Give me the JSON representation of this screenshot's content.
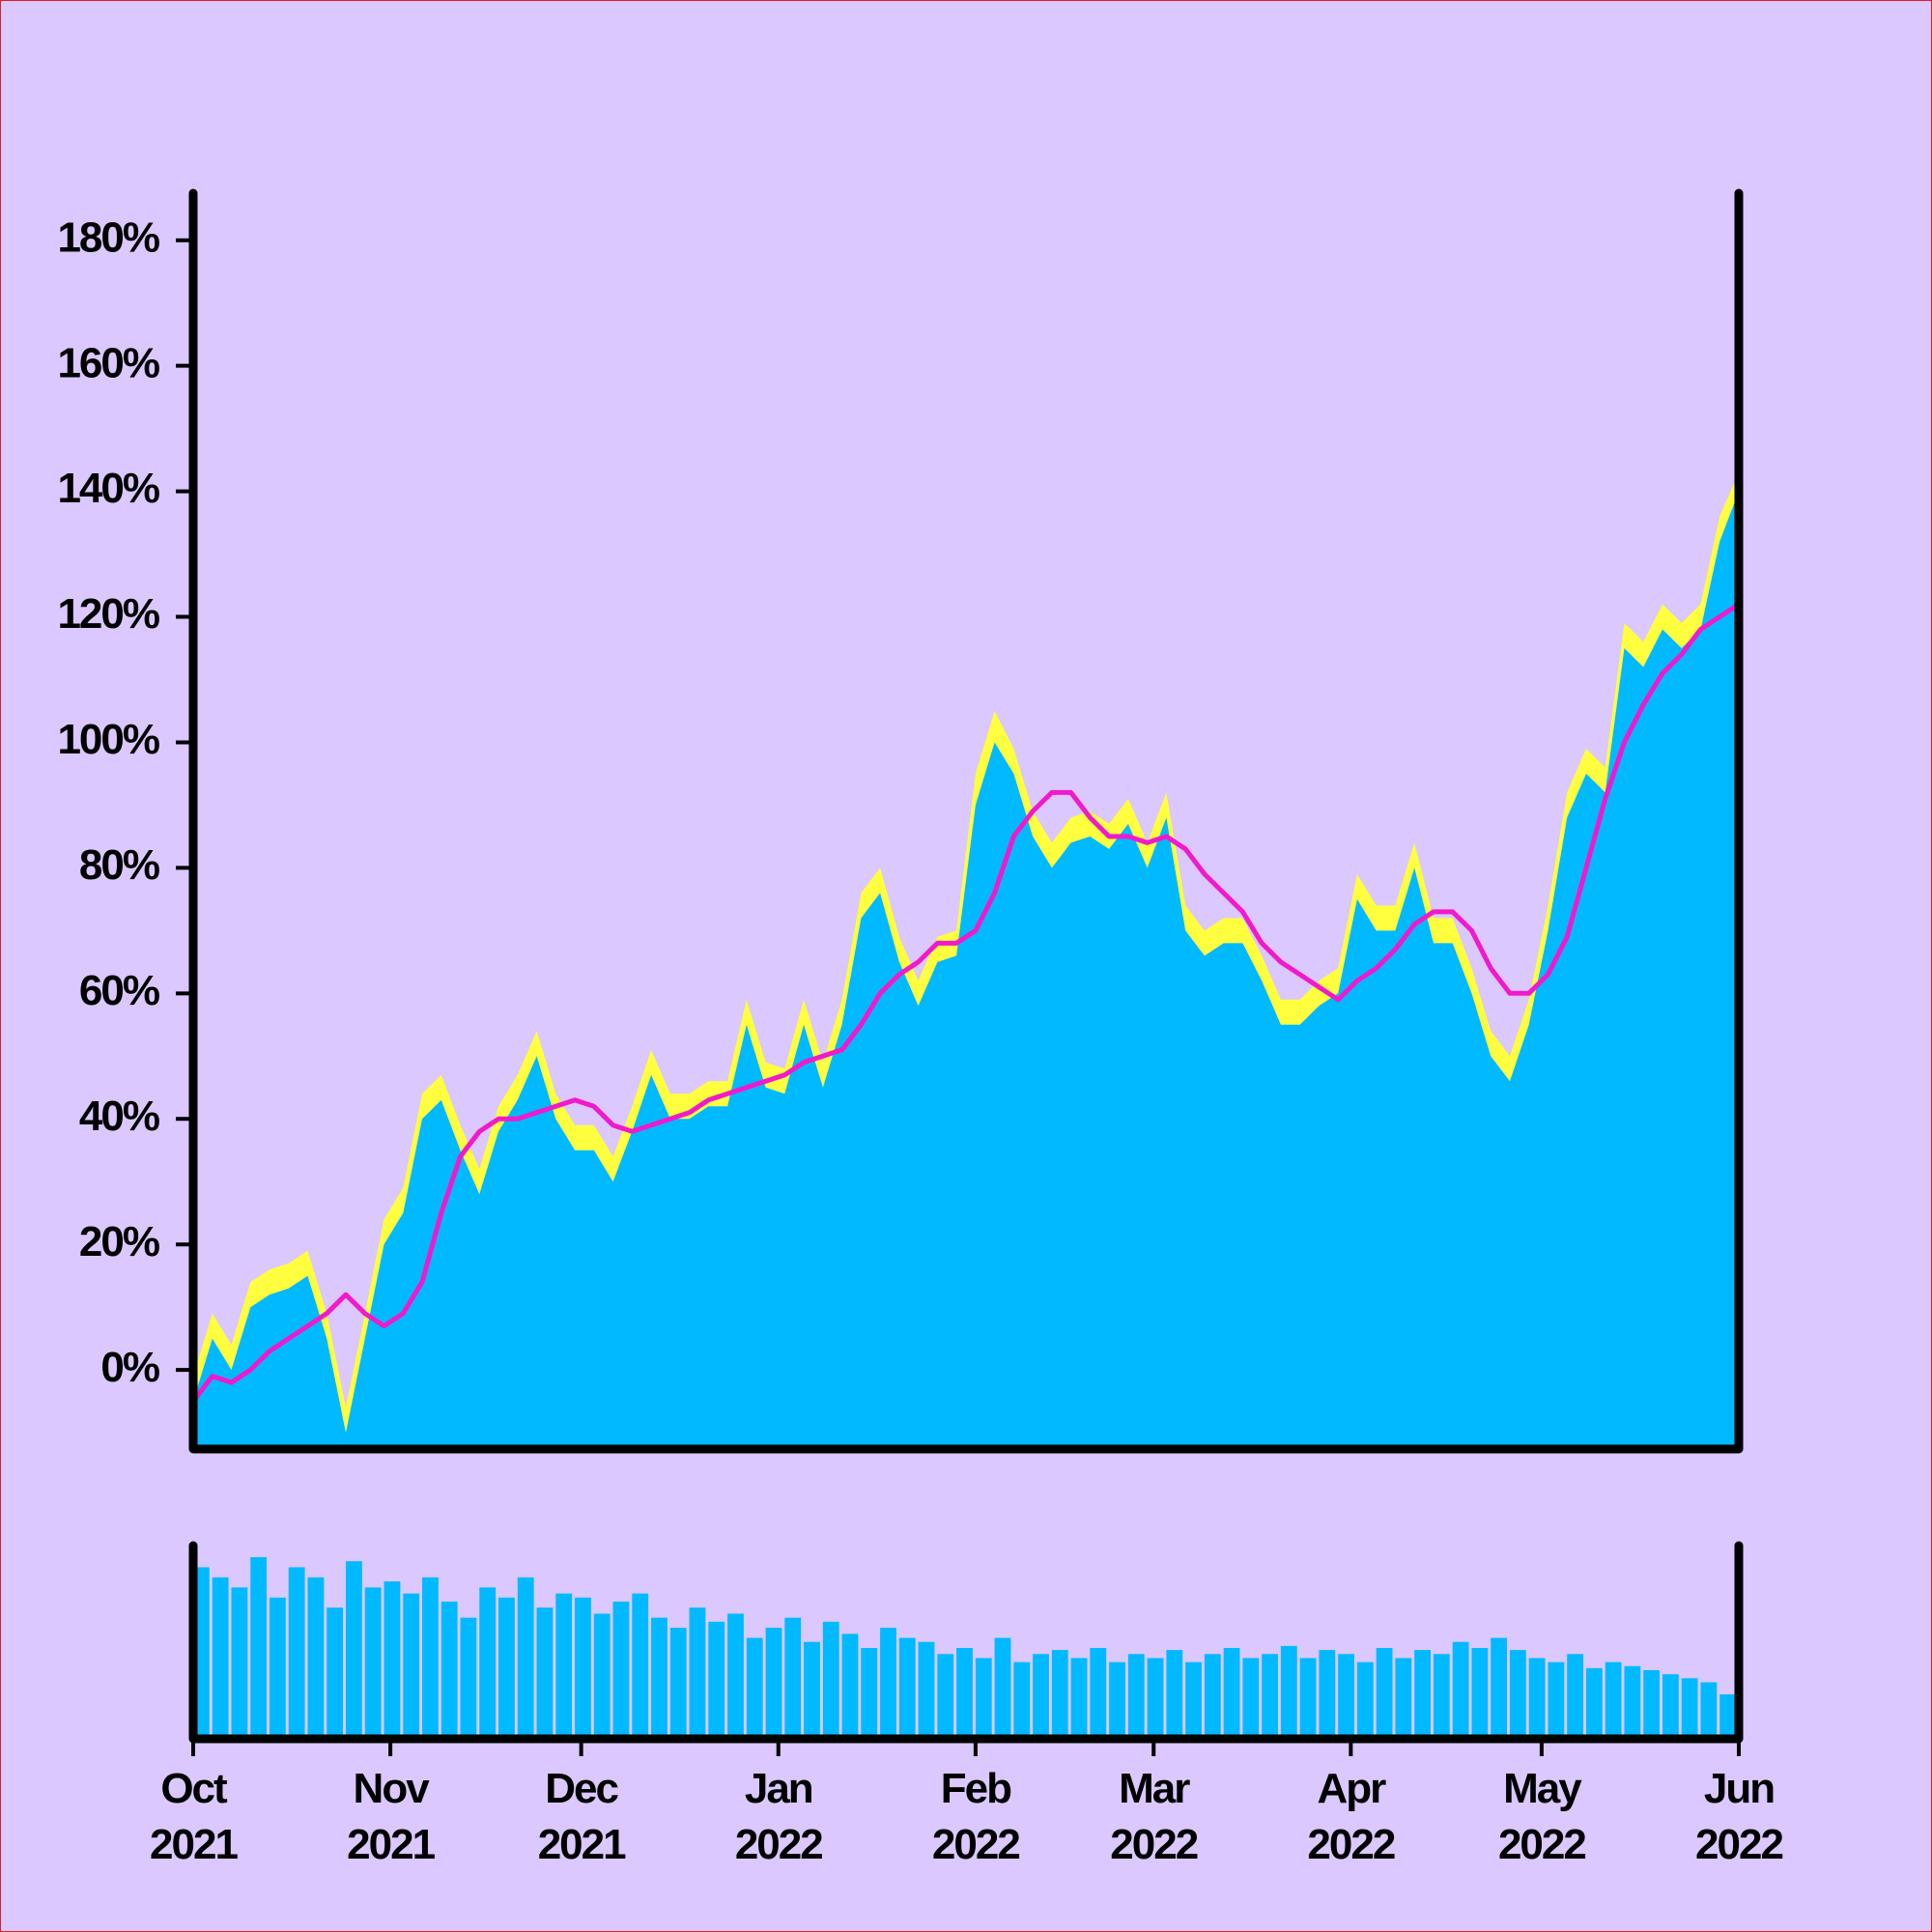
{
  "chart_data": [
    {
      "type": "area",
      "x": [
        0,
        3,
        6,
        9,
        12,
        15,
        18,
        21,
        24,
        27,
        30,
        33,
        36,
        39,
        42,
        45,
        48,
        51,
        54,
        57,
        60,
        63,
        66,
        69,
        72,
        75,
        78,
        81,
        84,
        87,
        90,
        93,
        96,
        99,
        102,
        105,
        108,
        111,
        114,
        117,
        120,
        123,
        126,
        129,
        132,
        135,
        138,
        141,
        144,
        147,
        150,
        153,
        156,
        159,
        162,
        165,
        168,
        171,
        174,
        177,
        180,
        183,
        186,
        189,
        192,
        195,
        198,
        201,
        204,
        207,
        210,
        213,
        216,
        219,
        222,
        225,
        228,
        231,
        234,
        237,
        240,
        243
      ],
      "xlim": [
        0,
        243
      ],
      "ylim": [
        -12.6,
        187.5
      ],
      "yticks": [
        {
          "value": 0,
          "label": "0%"
        },
        {
          "value": 20,
          "label": "20%"
        },
        {
          "value": 40,
          "label": "40%"
        },
        {
          "value": 60,
          "label": "60%"
        },
        {
          "value": 80,
          "label": "80%"
        },
        {
          "value": 100,
          "label": "100%"
        },
        {
          "value": 120,
          "label": "120%"
        },
        {
          "value": 140,
          "label": "140%"
        },
        {
          "value": 160,
          "label": "160%"
        },
        {
          "value": 180,
          "label": "180%"
        }
      ],
      "series": [
        {
          "color": "#ffff40",
          "values": [
            -1,
            9,
            4,
            14,
            16,
            17,
            19,
            9,
            -6,
            9,
            24,
            29,
            44,
            47,
            39,
            32,
            42,
            47,
            54,
            44,
            39,
            39,
            34,
            42,
            51,
            44,
            44,
            46,
            46,
            59,
            49,
            48,
            59,
            49,
            59,
            76,
            80,
            69,
            62,
            69,
            70,
            95,
            105,
            99,
            89,
            84,
            88,
            89,
            87,
            91,
            84,
            92,
            74,
            70,
            72,
            72,
            66,
            59,
            59,
            62,
            64,
            79,
            74,
            74,
            84,
            72,
            72,
            64,
            54,
            50,
            59,
            74,
            92,
            99,
            96,
            119,
            116,
            122,
            119,
            122,
            136,
            143
          ]
        },
        {
          "color": "#00b9fe",
          "values": [
            -5,
            5,
            0,
            10,
            12,
            13,
            15,
            5,
            -10,
            5,
            20,
            25,
            40,
            43,
            35,
            28,
            38,
            43,
            50,
            40,
            35,
            35,
            30,
            38,
            47,
            40,
            40,
            42,
            42,
            55,
            45,
            44,
            55,
            45,
            55,
            72,
            76,
            65,
            58,
            65,
            66,
            90,
            100,
            95,
            85,
            80,
            84,
            85,
            83,
            87,
            80,
            88,
            70,
            66,
            68,
            68,
            62,
            55,
            55,
            58,
            60,
            75,
            70,
            70,
            80,
            68,
            68,
            60,
            50,
            46,
            55,
            70,
            88,
            95,
            92,
            115,
            112,
            118,
            115,
            118,
            132,
            140
          ]
        },
        {
          "type": "line",
          "color": "#f01acd",
          "values": [
            -5,
            -1,
            -2,
            0,
            3,
            5,
            7,
            9,
            12,
            9,
            7,
            9,
            14,
            25,
            34,
            38,
            40,
            40,
            41,
            42,
            43,
            42,
            39,
            38,
            39,
            40,
            41,
            43,
            44,
            45,
            46,
            47,
            49,
            50,
            51,
            55,
            60,
            63,
            65,
            68,
            68,
            70,
            76,
            85,
            89,
            92,
            92,
            88,
            85,
            85,
            84,
            85,
            83,
            79,
            76,
            73,
            68,
            65,
            63,
            61,
            59,
            62,
            64,
            67,
            71,
            73,
            73,
            70,
            64,
            60,
            60,
            63,
            69,
            80,
            91,
            100,
            106,
            111,
            114,
            118,
            120,
            122
          ]
        }
      ]
    },
    {
      "type": "bar",
      "x": [
        0,
        3,
        6,
        9,
        12,
        15,
        18,
        21,
        24,
        27,
        30,
        33,
        36,
        39,
        42,
        45,
        48,
        51,
        54,
        57,
        60,
        63,
        66,
        69,
        72,
        75,
        78,
        81,
        84,
        87,
        90,
        93,
        96,
        99,
        102,
        105,
        108,
        111,
        114,
        117,
        120,
        123,
        126,
        129,
        132,
        135,
        138,
        141,
        144,
        147,
        150,
        153,
        156,
        159,
        162,
        165,
        168,
        171,
        174,
        177,
        180,
        183,
        186,
        189,
        192,
        195,
        198,
        201,
        204,
        207,
        210,
        213,
        216,
        219,
        222,
        225,
        228,
        231,
        234,
        237,
        240,
        243
      ],
      "xlim": [
        0,
        243
      ],
      "color": "#00b9fe",
      "values": [
        85,
        80,
        75,
        90,
        70,
        85,
        80,
        65,
        88,
        75,
        78,
        72,
        80,
        68,
        60,
        75,
        70,
        80,
        65,
        72,
        70,
        62,
        68,
        72,
        60,
        55,
        65,
        58,
        62,
        50,
        55,
        60,
        48,
        58,
        52,
        45,
        55,
        50,
        48,
        42,
        45,
        40,
        50,
        38,
        42,
        44,
        40,
        45,
        38,
        42,
        40,
        44,
        38,
        42,
        45,
        40,
        42,
        46,
        40,
        44,
        42,
        38,
        45,
        40,
        44,
        42,
        48,
        45,
        50,
        44,
        40,
        38,
        42,
        35,
        38,
        36,
        34,
        32,
        30,
        28,
        22,
        25
      ],
      "xticks": [
        {
          "value": 0,
          "label": "Oct 2021"
        },
        {
          "value": 31,
          "label": "Nov 2021"
        },
        {
          "value": 61,
          "label": "Dec 2021"
        },
        {
          "value": 92,
          "label": "Jan 2022"
        },
        {
          "value": 123,
          "label": "Feb 2022"
        },
        {
          "value": 151,
          "label": "Mar 2022"
        },
        {
          "value": 182,
          "label": "Apr 2022"
        },
        {
          "value": 212,
          "label": "May 2022"
        },
        {
          "value": 243,
          "label": "Jun 2022"
        }
      ]
    }
  ]
}
